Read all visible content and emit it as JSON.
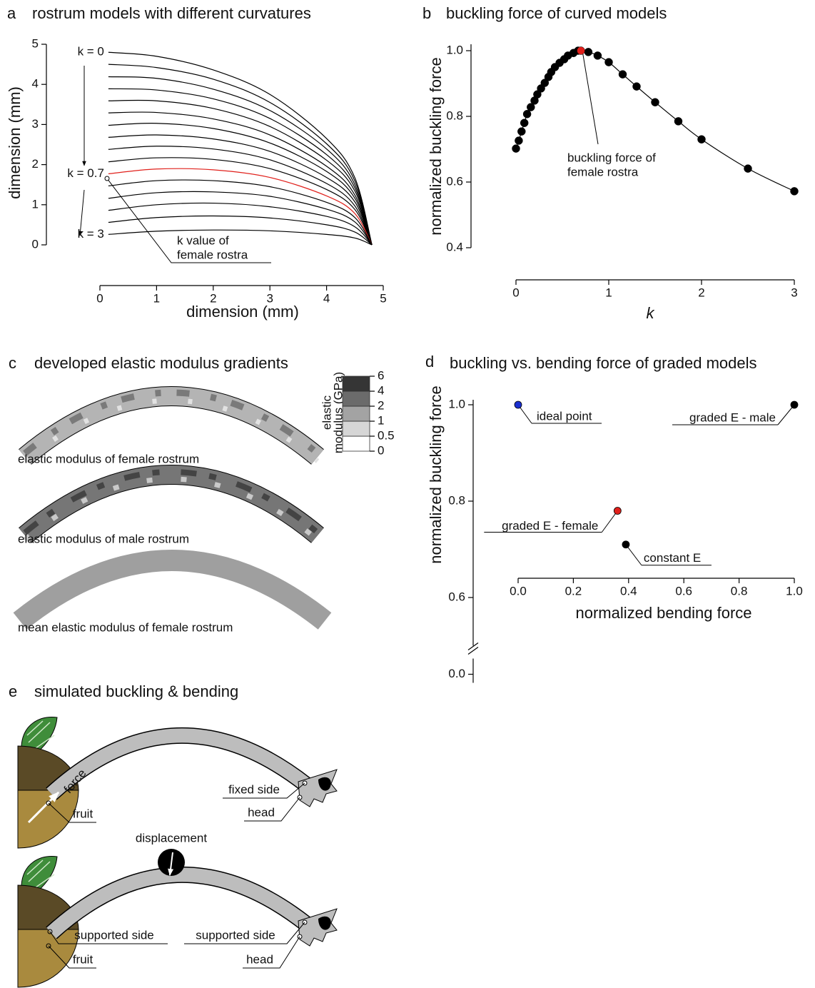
{
  "chart_data": [
    {
      "type": "line",
      "label": "a",
      "title": "rostrum models with different curvatures",
      "xlabel": "dimension (mm)",
      "ylabel": "dimension (mm)",
      "xlim": [
        0,
        5
      ],
      "ylim": [
        0,
        5
      ],
      "xticks": [
        0,
        1,
        2,
        3,
        4,
        5
      ],
      "yticks": [
        0,
        1,
        2,
        3,
        4,
        5
      ],
      "x": [
        0.15,
        1,
        2,
        3,
        4,
        4.5,
        4.8
      ],
      "series": [
        {
          "name": "k = 0",
          "color": "#000000",
          "values": [
            4.8,
            4.7,
            4.36,
            3.75,
            2.65,
            1.67,
            0
          ]
        },
        {
          "color": "#000000",
          "values": [
            4.5,
            4.42,
            4.13,
            3.55,
            2.52,
            1.59,
            0
          ]
        },
        {
          "color": "#000000",
          "values": [
            4.19,
            4.15,
            3.88,
            3.35,
            2.39,
            1.5,
            0
          ]
        },
        {
          "color": "#000000",
          "values": [
            3.89,
            3.86,
            3.64,
            3.15,
            2.25,
            1.42,
            0
          ]
        },
        {
          "color": "#000000",
          "values": [
            3.59,
            3.59,
            3.4,
            2.95,
            2.11,
            1.34,
            0
          ]
        },
        {
          "color": "#000000",
          "values": [
            3.29,
            3.3,
            3.14,
            2.74,
            1.96,
            1.24,
            0
          ]
        },
        {
          "color": "#000000",
          "values": [
            2.98,
            3.03,
            2.9,
            2.54,
            1.83,
            1.16,
            0
          ]
        },
        {
          "color": "#000000",
          "values": [
            2.68,
            2.74,
            2.64,
            2.33,
            1.68,
            1.07,
            0
          ]
        },
        {
          "color": "#000000",
          "values": [
            2.38,
            2.46,
            2.39,
            2.12,
            1.53,
            0.97,
            0
          ]
        },
        {
          "color": "#000000",
          "values": [
            2.07,
            2.17,
            2.13,
            1.9,
            1.38,
            0.88,
            0
          ]
        },
        {
          "name": "k = 0.7",
          "color": "#e0201b",
          "values": [
            1.77,
            1.89,
            1.87,
            1.68,
            1.22,
            0.78,
            0
          ]
        },
        {
          "color": "#000000",
          "values": [
            1.47,
            1.6,
            1.6,
            1.45,
            1.06,
            0.68,
            0
          ]
        },
        {
          "color": "#000000",
          "values": [
            1.16,
            1.3,
            1.32,
            1.21,
            0.89,
            0.57,
            0
          ]
        },
        {
          "color": "#000000",
          "values": [
            0.86,
            1.0,
            1.04,
            0.95,
            0.71,
            0.45,
            0
          ]
        },
        {
          "color": "#000000",
          "values": [
            0.56,
            0.68,
            0.72,
            0.67,
            0.5,
            0.32,
            0
          ]
        },
        {
          "name": "k = 3",
          "color": "#000000",
          "values": [
            0.26,
            0.34,
            0.37,
            0.35,
            0.26,
            0.17,
            0
          ]
        }
      ],
      "annotation": [
        "k value of",
        "female rostra"
      ]
    },
    {
      "type": "line",
      "label": "b",
      "title": "buckling force of curved models",
      "xlabel": "k",
      "ylabel": "normalized buckling force",
      "xlim": [
        0,
        3
      ],
      "ylim": [
        0.4,
        1
      ],
      "xticks": [
        0,
        1,
        2,
        3
      ],
      "yticks": [
        0.4,
        0.6,
        0.8,
        {
          "value": 1,
          "label": "1.0"
        }
      ],
      "markers": true,
      "series": [
        {
          "color": "#000000",
          "x": [
            0,
            0.03,
            0.06,
            0.09,
            0.12,
            0.16,
            0.2,
            0.23,
            0.27,
            0.31,
            0.35,
            0.38,
            0.42,
            0.47,
            0.52,
            0.56,
            0.62,
            0.67,
            0.78,
            0.88,
            1.0,
            1.15,
            1.3,
            1.5,
            1.75,
            2.0,
            2.5,
            3.0
          ],
          "values": [
            0.702,
            0.726,
            0.754,
            0.78,
            0.807,
            0.828,
            0.848,
            0.867,
            0.885,
            0.902,
            0.92,
            0.935,
            0.95,
            0.963,
            0.974,
            0.985,
            0.993,
            1.0,
            0.996,
            0.985,
            0.965,
            0.928,
            0.891,
            0.843,
            0.785,
            0.73,
            0.641,
            0.572
          ]
        },
        {
          "color": "#e0201b",
          "x": [
            0.7
          ],
          "values": [
            1.0
          ]
        }
      ],
      "annotation": [
        "buckling force of",
        "female rostra"
      ]
    },
    {
      "type": "scatter",
      "label": "d",
      "title": "buckling vs. bending force of graded models",
      "xlabel": "normalized bending force",
      "ylabel": "normalized buckling force",
      "xlim": [
        0,
        1
      ],
      "ylim": [
        0,
        1
      ],
      "ybreak": [
        0,
        0.5
      ],
      "xticks": [
        {
          "value": 0,
          "label": "0.0"
        },
        0.2,
        0.4,
        0.6,
        0.8,
        {
          "value": 1,
          "label": "1.0"
        }
      ],
      "yticks": [
        {
          "value": 0,
          "label": "0.0"
        },
        0.6,
        0.8,
        {
          "value": 1,
          "label": "1.0"
        }
      ],
      "x": [
        0,
        1,
        0.36,
        0.39
      ],
      "values": [
        1,
        1,
        0.78,
        0.71
      ],
      "labels": [
        "ideal point",
        "graded E - male",
        "graded E - female",
        "constant E"
      ],
      "colors": [
        "#1a2fd0",
        "#000000",
        "#e0201b",
        "#000000"
      ]
    }
  ],
  "panel_c": {
    "label": "c",
    "title": "developed elastic modulus gradients",
    "colorbar": {
      "label": [
        "elastic",
        "modulus (GPa)"
      ],
      "ticks": [
        0,
        0.5,
        1,
        2,
        4,
        6
      ],
      "colors": [
        "#ffffff",
        "#d6d6d6",
        "#a3a3a3",
        "#6b6b6b",
        "#353535"
      ]
    },
    "captions": [
      "elastic modulus of female rostrum",
      "elastic modulus of male rostrum",
      "mean elastic modulus of female rostrum"
    ]
  },
  "panel_e": {
    "label": "e",
    "title": "simulated buckling & bending",
    "buckling": {
      "force": "force",
      "fixed_side": "fixed side",
      "head": "head",
      "fruit": "fruit"
    },
    "bending": {
      "displacement": "displacement",
      "supported_left": "supported side",
      "supported_right": "supported side",
      "fruit": "fruit",
      "head": "head"
    }
  }
}
